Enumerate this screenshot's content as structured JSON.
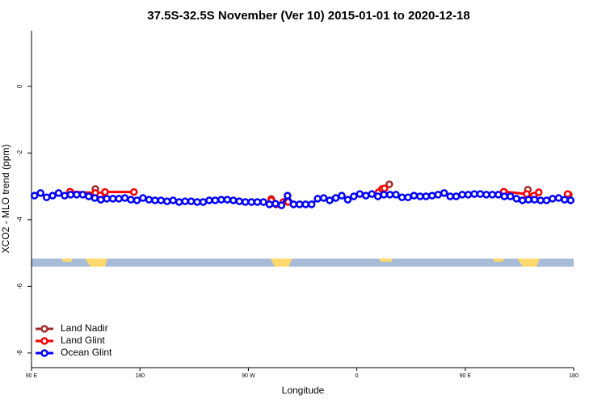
{
  "chart_data": {
    "type": "line",
    "title": "37.5S-32.5S November (Ver 10)   2015-01-01 to 2020-12-18",
    "x_label": "Longitude",
    "y_label": "XCO2 - MLO trend (ppm)",
    "xlim": [
      90,
      540
    ],
    "xticks": [
      {
        "value": 90,
        "label": "90 E"
      },
      180,
      {
        "value": 270,
        "label": "90 W"
      },
      {
        "value": 360,
        "label": "0"
      },
      {
        "value": 450,
        "label": "90 E"
      },
      {
        "value": 540,
        "label": "180"
      }
    ],
    "ylim": [
      -8.44,
      1.67
    ],
    "yticks": [
      0,
      -2,
      -4,
      -6,
      -8
    ],
    "legend": "bottom-left",
    "series": [
      {
        "name": "Land Nadir",
        "color": "#a52a2a",
        "x": [
          143,
          null,
          289,
          null,
          380,
          387,
          null,
          502,
          null,
          536
        ],
        "values": [
          -3.08,
          null,
          -3.38,
          null,
          -3.13,
          -2.94,
          null,
          -3.1,
          null,
          -3.25
        ]
      },
      {
        "name": "Land Glint",
        "color": "#ff0000",
        "x": [
          122,
          143,
          147,
          151,
          175,
          null,
          289,
          293,
          299,
          303,
          null,
          378,
          381,
          383,
          null,
          482,
          501,
          507,
          511,
          null,
          535
        ],
        "values": [
          -3.16,
          -3.2,
          -3.27,
          -3.17,
          -3.17,
          null,
          -3.42,
          -3.54,
          -3.47,
          -3.47,
          null,
          -3.18,
          -3.08,
          -3.06,
          null,
          -3.16,
          -3.23,
          -3.28,
          -3.18,
          null,
          -3.23
        ]
      },
      {
        "name": "Ocean Glint",
        "color": "#0000ff",
        "x": [
          92.5,
          97.5,
          102.5,
          107.5,
          112.5,
          117.5,
          122.5,
          127.5,
          132.5,
          137.5,
          142.5,
          147.5,
          152.5,
          157.5,
          162.5,
          167.5,
          172.5,
          177.5,
          182.5,
          187.5,
          192.5,
          197.5,
          202.5,
          207.5,
          212.5,
          217.5,
          222.5,
          227.5,
          232.5,
          237.5,
          242.5,
          247.5,
          252.5,
          257.5,
          262.5,
          267.5,
          272.5,
          277.5,
          282.5,
          287.5,
          292.5,
          297.5,
          302.5,
          307.5,
          312.5,
          317.5,
          322.5,
          327.5,
          332.5,
          337.5,
          342.5,
          347.5,
          352.5,
          357.5,
          362.5,
          367.5,
          372.5,
          377.5,
          382.5,
          387.5,
          392.5,
          397.5,
          402.5,
          407.5,
          412.5,
          417.5,
          422.5,
          427.5,
          432.5,
          437.5,
          442.5,
          447.5,
          452.5,
          457.5,
          462.5,
          467.5,
          472.5,
          477.5,
          482.5,
          487.5,
          492.5,
          497.5,
          502.5,
          507.5,
          512.5,
          517.5,
          522.5,
          527.5,
          532.5,
          537.5
        ],
        "values": [
          -3.28,
          -3.2,
          -3.33,
          -3.28,
          -3.2,
          -3.28,
          -3.25,
          -3.25,
          -3.25,
          -3.3,
          -3.35,
          -3.4,
          -3.37,
          -3.37,
          -3.37,
          -3.35,
          -3.4,
          -3.42,
          -3.35,
          -3.4,
          -3.42,
          -3.42,
          -3.45,
          -3.42,
          -3.47,
          -3.45,
          -3.45,
          -3.47,
          -3.47,
          -3.42,
          -3.42,
          -3.4,
          -3.4,
          -3.42,
          -3.45,
          -3.47,
          -3.47,
          -3.47,
          -3.47,
          -3.54,
          -3.52,
          -3.57,
          -3.28,
          -3.54,
          -3.54,
          -3.54,
          -3.54,
          -3.37,
          -3.35,
          -3.42,
          -3.35,
          -3.28,
          -3.4,
          -3.3,
          -3.23,
          -3.28,
          -3.23,
          -3.3,
          -3.25,
          -3.25,
          -3.25,
          -3.33,
          -3.33,
          -3.28,
          -3.3,
          -3.3,
          -3.28,
          -3.25,
          -3.2,
          -3.3,
          -3.3,
          -3.25,
          -3.25,
          -3.23,
          -3.23,
          -3.25,
          -3.25,
          -3.25,
          -3.3,
          -3.3,
          -3.37,
          -3.42,
          -3.4,
          -3.4,
          -3.42,
          -3.42,
          -3.37,
          -3.35,
          -3.4,
          -3.42
        ]
      }
    ]
  }
}
